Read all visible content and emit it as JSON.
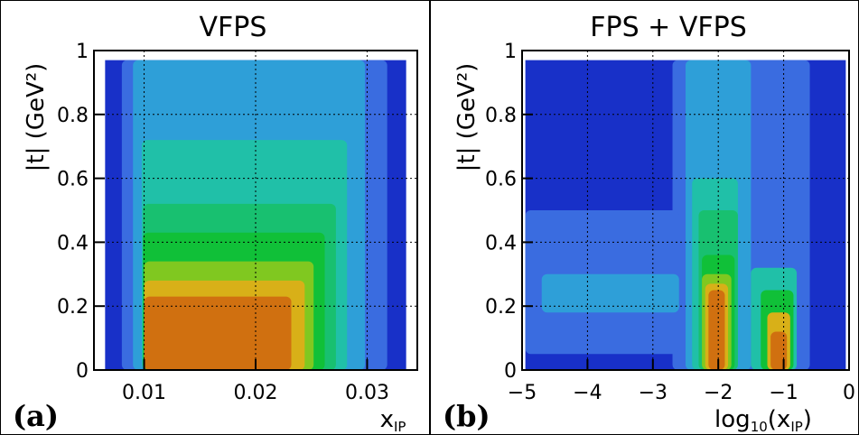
{
  "chart_data": [
    {
      "type": "heatmap",
      "panel_label": "(a)",
      "title": "VFPS",
      "xlabel": "x",
      "xlabel_sub": "IP",
      "ylabel": "|t| (GeV²)",
      "xlim": [
        0.0055,
        0.0345
      ],
      "ylim": [
        0,
        1
      ],
      "x_ticks": [
        0.01,
        0.02,
        0.03
      ],
      "x_ticklabels": [
        "0.01",
        "0.02",
        "0.03"
      ],
      "y_ticks": [
        0,
        0.2,
        0.4,
        0.6,
        0.8,
        1
      ],
      "y_ticklabels": [
        "0",
        "0.2",
        "0.4",
        "0.6",
        "0.8",
        "1"
      ],
      "grid": true,
      "filled_region": {
        "x": [
          0.0065,
          0.0335
        ],
        "y": [
          0,
          0.97
        ]
      },
      "contour_bands": [
        {
          "color": "#3a6ce0",
          "x": [
            0.008,
            0.0318
          ],
          "y": [
            0,
            0.97
          ]
        },
        {
          "color": "#2e9fd8",
          "x": [
            0.009,
            0.0298
          ],
          "y": [
            0,
            0.97
          ]
        },
        {
          "color": "#20c0a8",
          "x": [
            0.0098,
            0.0282
          ],
          "y": [
            0,
            0.72
          ]
        },
        {
          "color": "#18c070",
          "x": [
            0.0099,
            0.0272
          ],
          "y": [
            0,
            0.52
          ]
        },
        {
          "color": "#10c038",
          "x": [
            0.0099,
            0.0262
          ],
          "y": [
            0,
            0.43
          ]
        },
        {
          "color": "#80c820",
          "x": [
            0.01,
            0.0252
          ],
          "y": [
            0,
            0.34
          ]
        },
        {
          "color": "#d8b018",
          "x": [
            0.01,
            0.0244
          ],
          "y": [
            0,
            0.28
          ]
        },
        {
          "color": "#d07010",
          "x": [
            0.01,
            0.0232
          ],
          "y": [
            0,
            0.23
          ]
        }
      ]
    },
    {
      "type": "heatmap",
      "panel_label": "(b)",
      "title": "FPS + VFPS",
      "xlabel": "log",
      "xlabel_sub": "10",
      "xlabel_tail": "(x",
      "xlabel_sub2": "IP",
      "xlabel_close": ")",
      "ylabel": "|t| (GeV²)",
      "xlim": [
        -5,
        0
      ],
      "ylim": [
        0,
        1
      ],
      "x_ticks": [
        -5,
        -4,
        -3,
        -2,
        -1,
        0
      ],
      "x_ticklabels": [
        "−5",
        "−4",
        "−3",
        "−2",
        "−1",
        "0"
      ],
      "y_ticks": [
        0,
        0.2,
        0.4,
        0.6,
        0.8,
        1
      ],
      "y_ticklabels": [
        "0",
        "0.2",
        "0.4",
        "0.6",
        "0.8",
        "1"
      ],
      "grid": true,
      "filled_region": {
        "x": [
          -4.95,
          -0.05
        ],
        "y": [
          0,
          0.97
        ]
      },
      "contour_bands": [
        {
          "color": "#3a6ce0",
          "x": [
            -2.7,
            -0.6
          ],
          "y": [
            0,
            0.97
          ]
        },
        {
          "color": "#3a6ce0",
          "x": [
            -4.95,
            -2.6
          ],
          "y": [
            0.05,
            0.5
          ]
        },
        {
          "color": "#2e9fd8",
          "x": [
            -2.5,
            -1.5
          ],
          "y": [
            0,
            0.97
          ]
        },
        {
          "color": "#2e9fd8",
          "x": [
            -4.7,
            -2.6
          ],
          "y": [
            0.18,
            0.3
          ]
        },
        {
          "color": "#20c0a8",
          "x": [
            -2.4,
            -1.7
          ],
          "y": [
            0,
            0.6
          ]
        },
        {
          "color": "#20c0a8",
          "x": [
            -1.5,
            -0.8
          ],
          "y": [
            0,
            0.32
          ]
        },
        {
          "color": "#18c070",
          "x": [
            -2.3,
            -1.7
          ],
          "y": [
            0,
            0.5
          ]
        },
        {
          "color": "#10c038",
          "x": [
            -2.25,
            -1.75
          ],
          "y": [
            0,
            0.36
          ]
        },
        {
          "color": "#10c038",
          "x": [
            -1.35,
            -0.85
          ],
          "y": [
            0,
            0.25
          ]
        },
        {
          "color": "#80c820",
          "x": [
            -2.25,
            -1.8
          ],
          "y": [
            0,
            0.3
          ]
        },
        {
          "color": "#d8b018",
          "x": [
            -2.2,
            -1.85
          ],
          "y": [
            0,
            0.27
          ]
        },
        {
          "color": "#d8b018",
          "x": [
            -1.25,
            -0.9
          ],
          "y": [
            0,
            0.18
          ]
        },
        {
          "color": "#d07010",
          "x": [
            -2.15,
            -1.9
          ],
          "y": [
            0,
            0.25
          ]
        },
        {
          "color": "#d07010",
          "x": [
            -1.2,
            -0.95
          ],
          "y": [
            0,
            0.12
          ]
        }
      ]
    }
  ],
  "colors": {
    "background_fill": "#1830c8",
    "frame": "#000000",
    "grid": "#000000"
  }
}
